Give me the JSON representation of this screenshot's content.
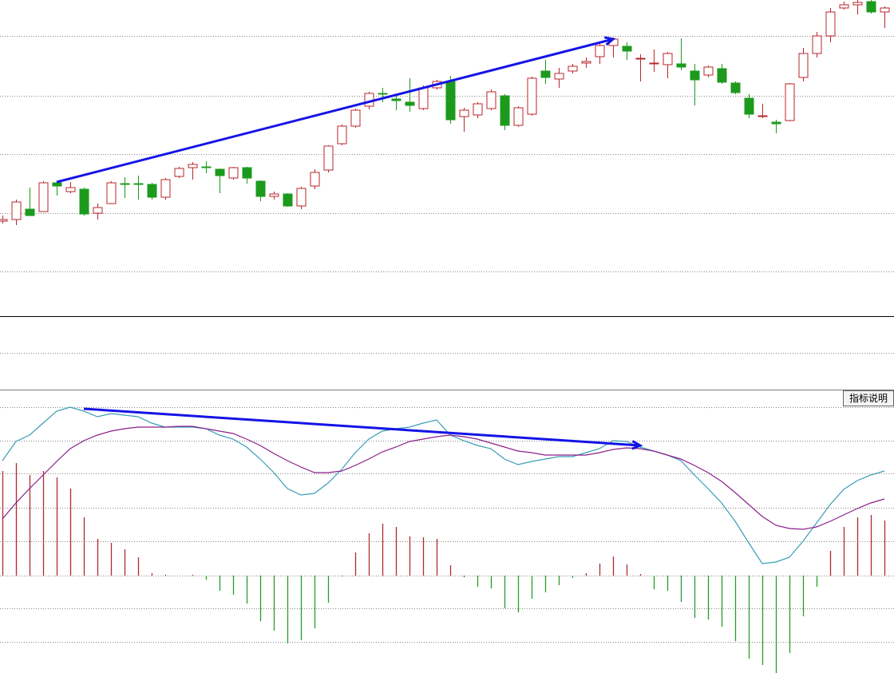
{
  "button_label": "指标说明",
  "chart_data": [
    {
      "type": "candlestick",
      "ylim": [
        0,
        400
      ],
      "gridlines": [
        355,
        280,
        207,
        133,
        60
      ],
      "up_color": "#b8262b",
      "down_color": "#1c9a1c",
      "open": [
        123,
        125,
        138,
        135,
        171,
        160,
        163,
        133,
        145,
        170,
        170,
        169,
        153,
        179,
        190,
        191,
        188,
        177,
        190,
        173,
        154,
        157,
        142,
        167,
        187,
        220,
        242,
        267,
        283,
        276,
        272,
        264,
        290,
        298,
        254,
        256,
        264,
        280,
        243,
        257,
        311,
        301,
        311,
        321,
        329,
        343,
        342,
        327,
        321,
        319,
        320,
        311,
        306,
        314,
        296,
        277,
        255,
        247,
        249,
        303,
        333,
        355,
        390,
        394,
        398,
        385
      ],
      "high": [
        130,
        150,
        165,
        173,
        173,
        172,
        165,
        145,
        173,
        178,
        180,
        171,
        177,
        191,
        197,
        198,
        189,
        191,
        191,
        174,
        160,
        158,
        166,
        188,
        218,
        244,
        264,
        285,
        290,
        282,
        302,
        293,
        300,
        305,
        265,
        272,
        288,
        282,
        267,
        304,
        325,
        315,
        320,
        328,
        345,
        353,
        347,
        332,
        338,
        335,
        352,
        320,
        318,
        320,
        298,
        282,
        270,
        250,
        296,
        340,
        360,
        390,
        398,
        400,
        400,
        392
      ],
      "low": [
        120,
        118,
        130,
        135,
        155,
        158,
        130,
        125,
        145,
        152,
        150,
        150,
        150,
        177,
        175,
        183,
        158,
        175,
        170,
        148,
        150,
        141,
        138,
        163,
        184,
        218,
        240,
        263,
        272,
        262,
        260,
        262,
        288,
        245,
        235,
        252,
        262,
        237,
        241,
        255,
        295,
        290,
        308,
        315,
        320,
        328,
        325,
        298,
        310,
        302,
        312,
        268,
        303,
        295,
        282,
        252,
        252,
        233,
        248,
        298,
        328,
        347,
        388,
        382,
        383,
        365
      ],
      "close": [
        125,
        147,
        130,
        171,
        167,
        165,
        132,
        140,
        171,
        169,
        169,
        153,
        175,
        189,
        194,
        190,
        180,
        190,
        177,
        154,
        157,
        142,
        164,
        184,
        217,
        242,
        262,
        283,
        282,
        274,
        268,
        290,
        298,
        250,
        262,
        270,
        285,
        243,
        265,
        302,
        303,
        308,
        317,
        323,
        343,
        351,
        336,
        327,
        321,
        333,
        316,
        300,
        316,
        297,
        284,
        257,
        255,
        245,
        295,
        333,
        355,
        385,
        394,
        397,
        385,
        390
      ],
      "arrow": {
        "color": "#1414e6",
        "from": [
          4,
          172
        ],
        "to": [
          45,
          351
        ]
      }
    },
    {
      "type": "macd",
      "ylim": [
        -122,
        233
      ],
      "gridlines": [
        211,
        169,
        128,
        85,
        43,
        0,
        -41,
        -83
      ],
      "histogram": [
        131,
        141,
        126,
        131,
        123,
        109,
        73,
        46,
        41,
        33,
        23,
        3,
        1,
        0,
        1,
        -5,
        -19,
        -24,
        -35,
        -57,
        -69,
        -85,
        -81,
        -66,
        -34,
        -1,
        29,
        53,
        65,
        61,
        49,
        48,
        46,
        13,
        -2,
        -14,
        -16,
        -41,
        -46,
        -29,
        -21,
        -12,
        -3,
        3,
        15,
        24,
        14,
        2,
        -17,
        -19,
        -33,
        -53,
        -55,
        -64,
        -82,
        -104,
        -112,
        -122,
        -97,
        -51,
        -14,
        31,
        61,
        73,
        76,
        69
      ],
      "up_color": "#b02a30",
      "down_color": "#2a9a2a",
      "series": [
        {
          "color": "#3a9db8",
          "values": [
            144,
            168,
            176,
            191,
            206,
            211,
            206,
            199,
            203,
            201,
            199,
            191,
            186,
            186,
            186,
            184,
            176,
            171,
            161,
            146,
            129,
            109,
            101,
            103,
            116,
            133,
            154,
            171,
            181,
            184,
            186,
            191,
            195,
            176,
            169,
            163,
            159,
            146,
            139,
            143,
            146,
            149,
            149,
            154,
            159,
            169,
            168,
            161,
            156,
            151,
            144,
            126,
            109,
            91,
            68,
            41,
            15,
            17,
            23,
            43,
            66,
            89,
            108,
            119,
            126,
            131
          ]
        },
        {
          "color": "#8a1f8a",
          "values": [
            71,
            91,
            109,
            126,
            143,
            159,
            169,
            176,
            181,
            184,
            186,
            186,
            186,
            187,
            187,
            184,
            181,
            178,
            171,
            163,
            153,
            144,
            136,
            129,
            129,
            131,
            138,
            146,
            155,
            161,
            168,
            171,
            174,
            176,
            174,
            171,
            166,
            161,
            156,
            154,
            151,
            151,
            151,
            151,
            154,
            158,
            160,
            159,
            156,
            151,
            146,
            138,
            129,
            118,
            104,
            89,
            74,
            63,
            59,
            58,
            61,
            68,
            76,
            84,
            91,
            96
          ]
        }
      ],
      "arrow": {
        "color": "#1414e6",
        "from": [
          6,
          209
        ],
        "to": [
          47,
          163
        ]
      }
    }
  ]
}
